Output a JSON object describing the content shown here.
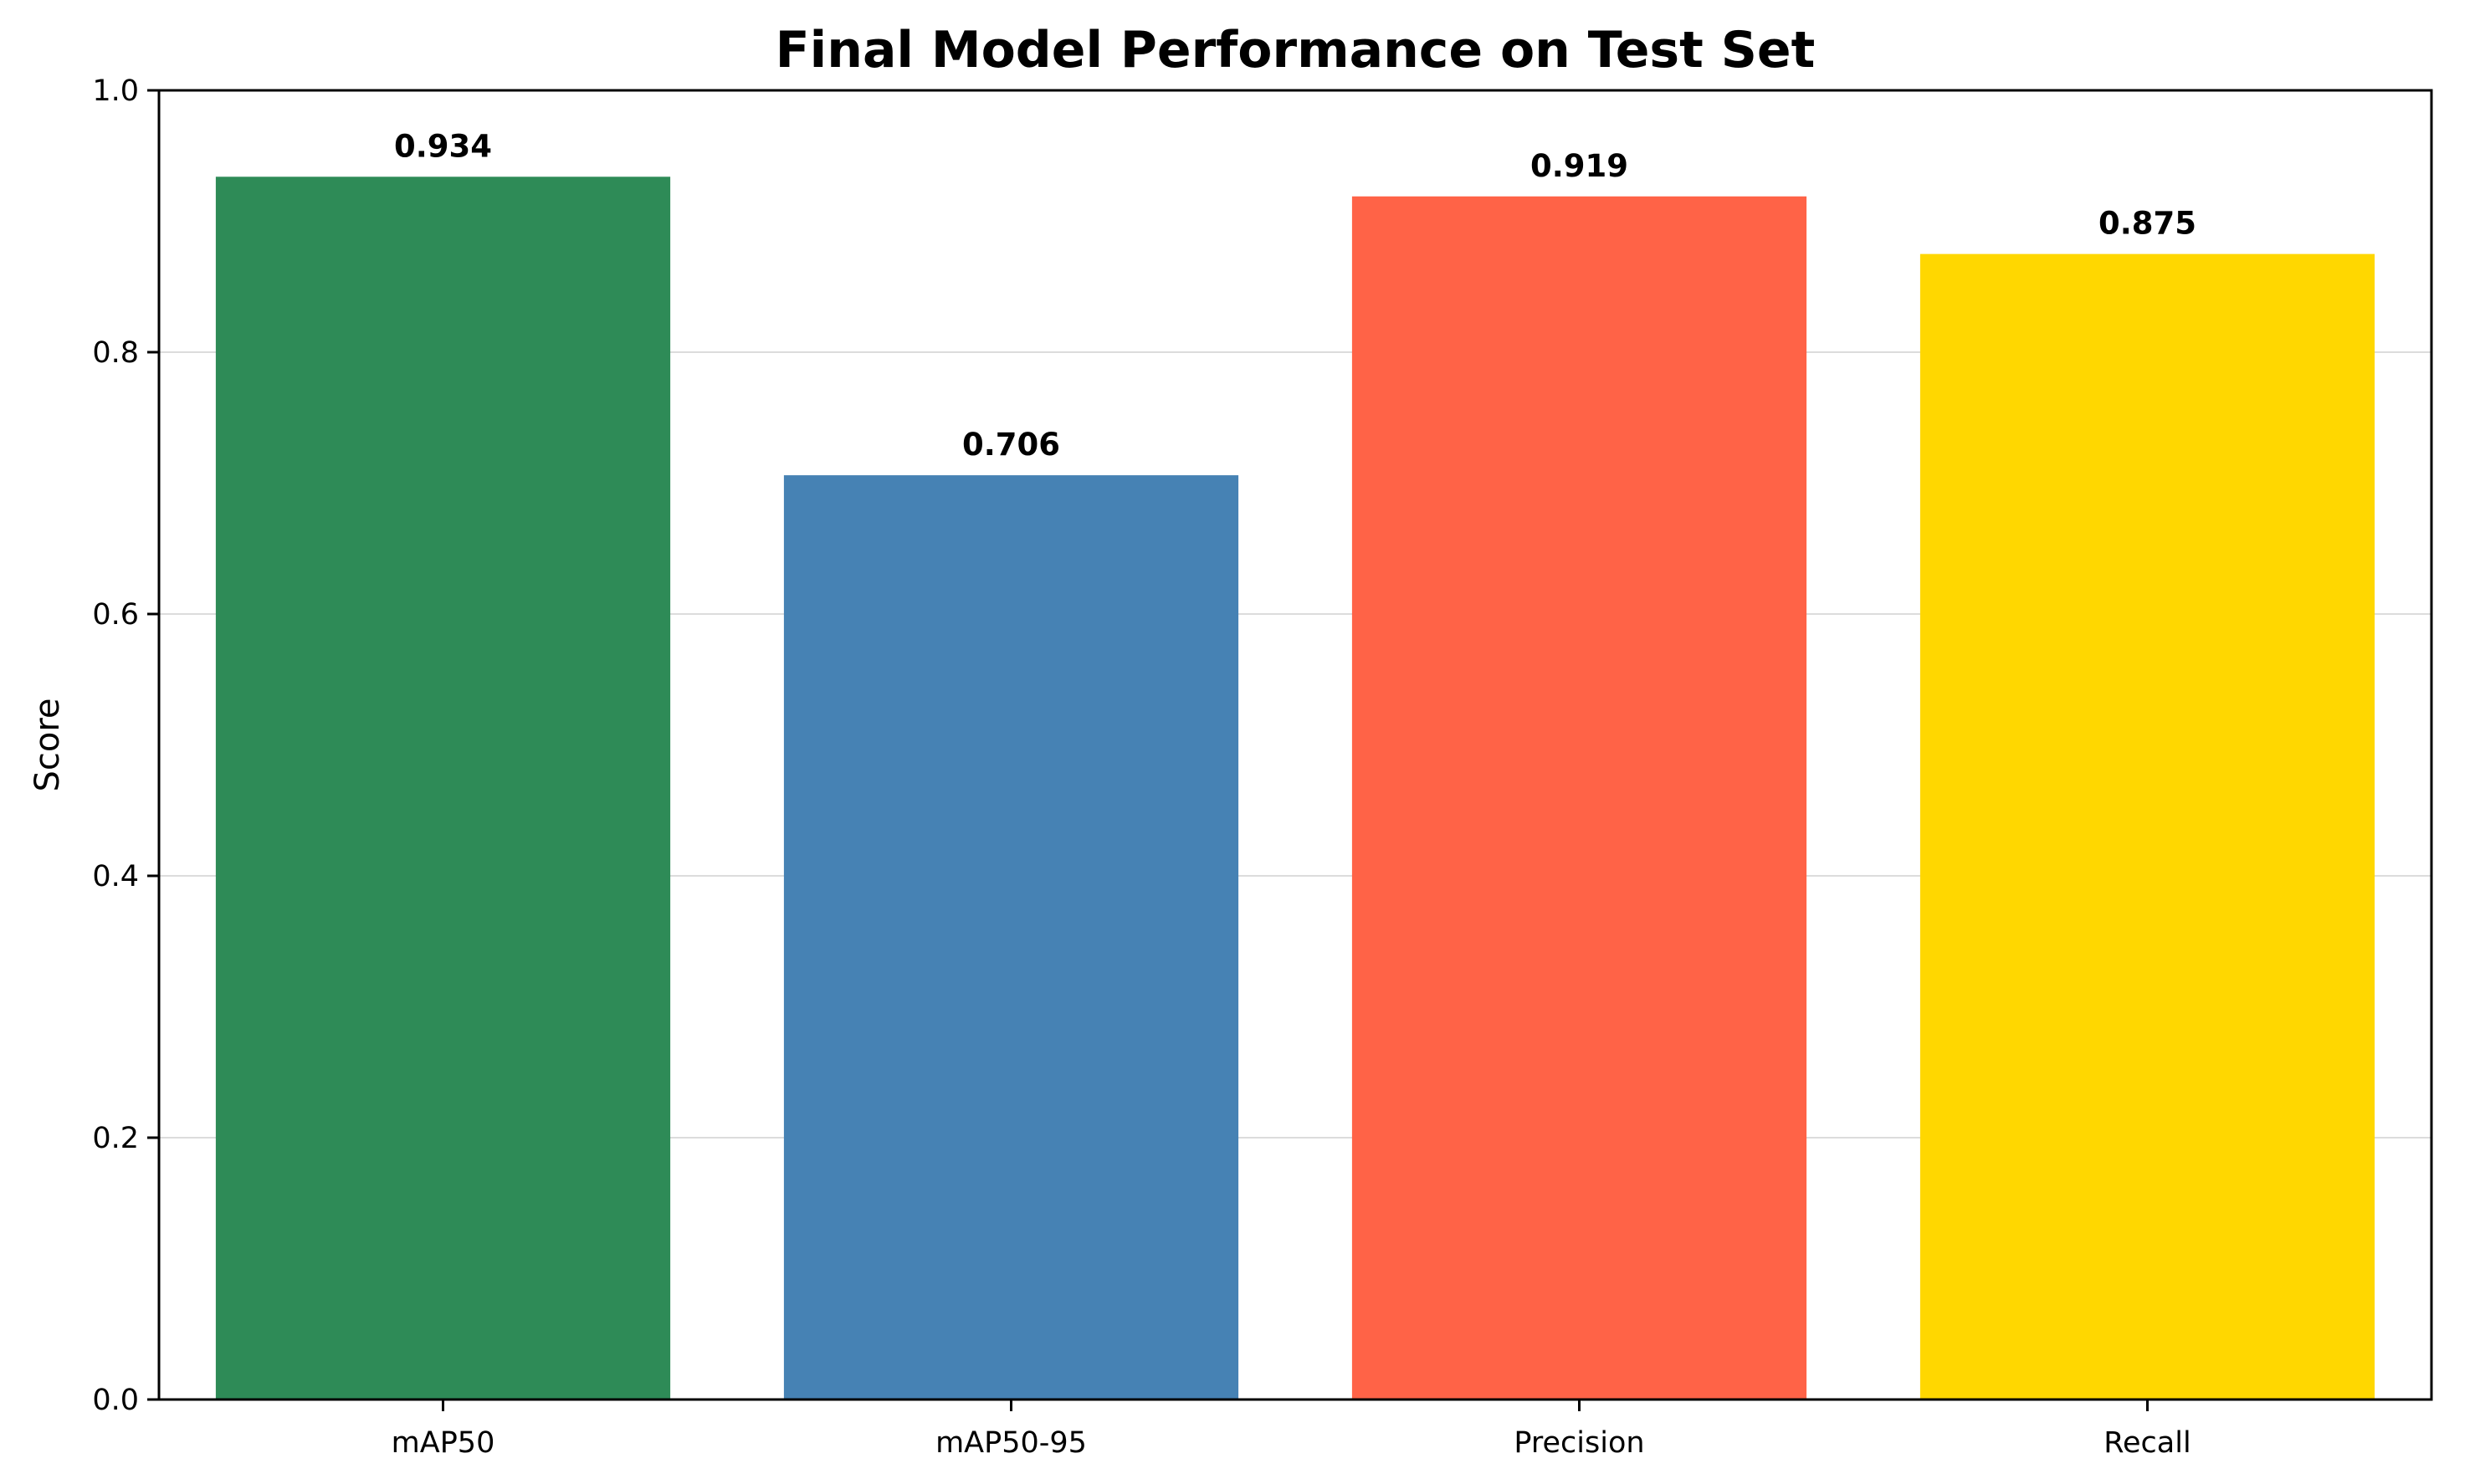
{
  "chart_data": {
    "type": "bar",
    "title": "Final Model Performance on Test Set",
    "xlabel": "",
    "ylabel": "Score",
    "categories": [
      "mAP50",
      "mAP50-95",
      "Precision",
      "Recall"
    ],
    "values": [
      0.934,
      0.706,
      0.919,
      0.875
    ],
    "value_labels": [
      "0.934",
      "0.706",
      "0.919",
      "0.875"
    ],
    "colors": [
      "#2e8b57",
      "#4682b4",
      "#ff6347",
      "#ffd700"
    ],
    "ylim": [
      0,
      1.0
    ],
    "yticks": [
      0.0,
      0.2,
      0.4,
      0.6,
      0.8,
      1.0
    ],
    "ytick_labels": [
      "0.0",
      "0.2",
      "0.4",
      "0.6",
      "0.8",
      "1.0"
    ],
    "grid": "y",
    "legend": "none"
  }
}
